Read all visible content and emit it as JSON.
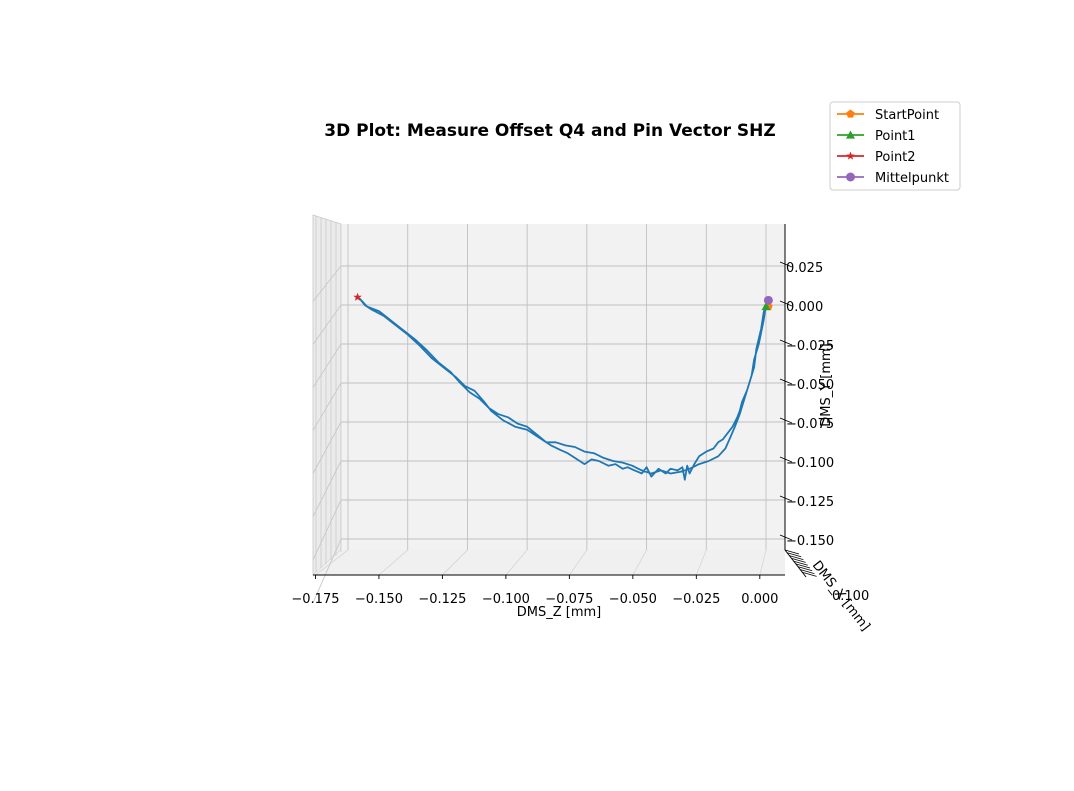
{
  "chart_data": {
    "type": "line",
    "projection": "3d",
    "title": "3D Plot: Measure Offset Q4 and Pin Vector SHZ",
    "xlabel": "DMS_Z [mm]",
    "ylabel": "DMS_Y [mm]",
    "zlabel": "DMS_X [mm]",
    "x_ticks": [
      -0.175,
      -0.15,
      -0.125,
      -0.1,
      -0.075,
      -0.05,
      -0.025,
      0.0
    ],
    "x_tick_labels": [
      "−0.175",
      "−0.150",
      "−0.125",
      "−0.100",
      "−0.075",
      "−0.050",
      "−0.025",
      "0.000"
    ],
    "y_ticks": [
      0.025,
      0.0,
      -0.025,
      -0.05,
      -0.075,
      -0.1,
      -0.125,
      -0.15
    ],
    "y_tick_labels": [
      "0.025",
      "0.000",
      "−0.025",
      "−0.050",
      "−0.075",
      "−0.100",
      "−0.125",
      "−0.150"
    ],
    "z_tick_labels": [
      "0.100"
    ],
    "xlim": [
      -0.185,
      0.008
    ],
    "ylim": [
      -0.165,
      0.05
    ],
    "grid": true,
    "legend_position": "top-right",
    "series": [
      {
        "name": "",
        "color": "#1f77b4",
        "style": "line",
        "points": [
          [
            0.0,
            0.0
          ],
          [
            -0.001,
            -0.01
          ],
          [
            -0.003,
            -0.025
          ],
          [
            -0.005,
            -0.035
          ],
          [
            -0.006,
            -0.045
          ],
          [
            -0.008,
            -0.055
          ],
          [
            -0.01,
            -0.062
          ],
          [
            -0.011,
            -0.068
          ],
          [
            -0.012,
            -0.072
          ],
          [
            -0.014,
            -0.078
          ],
          [
            -0.016,
            -0.082
          ],
          [
            -0.018,
            -0.086
          ],
          [
            -0.02,
            -0.088
          ],
          [
            -0.022,
            -0.092
          ],
          [
            -0.025,
            -0.094
          ],
          [
            -0.028,
            -0.097
          ],
          [
            -0.03,
            -0.102
          ],
          [
            -0.032,
            -0.108
          ],
          [
            -0.033,
            -0.103
          ],
          [
            -0.034,
            -0.112
          ],
          [
            -0.035,
            -0.104
          ],
          [
            -0.037,
            -0.106
          ],
          [
            -0.04,
            -0.105
          ],
          [
            -0.042,
            -0.108
          ],
          [
            -0.045,
            -0.105
          ],
          [
            -0.048,
            -0.11
          ],
          [
            -0.05,
            -0.104
          ],
          [
            -0.052,
            -0.108
          ],
          [
            -0.055,
            -0.106
          ],
          [
            -0.058,
            -0.104
          ],
          [
            -0.06,
            -0.105
          ],
          [
            -0.063,
            -0.102
          ],
          [
            -0.066,
            -0.103
          ],
          [
            -0.07,
            -0.1
          ],
          [
            -0.073,
            -0.099
          ],
          [
            -0.076,
            -0.102
          ],
          [
            -0.078,
            -0.1
          ],
          [
            -0.08,
            -0.098
          ],
          [
            -0.083,
            -0.095
          ],
          [
            -0.086,
            -0.093
          ],
          [
            -0.09,
            -0.09
          ],
          [
            -0.095,
            -0.085
          ],
          [
            -0.1,
            -0.08
          ],
          [
            -0.105,
            -0.078
          ],
          [
            -0.11,
            -0.074
          ],
          [
            -0.115,
            -0.068
          ],
          [
            -0.118,
            -0.062
          ],
          [
            -0.122,
            -0.055
          ],
          [
            -0.126,
            -0.052
          ],
          [
            -0.13,
            -0.046
          ],
          [
            -0.135,
            -0.04
          ],
          [
            -0.14,
            -0.034
          ],
          [
            -0.145,
            -0.026
          ],
          [
            -0.15,
            -0.019
          ],
          [
            -0.155,
            -0.013
          ],
          [
            -0.16,
            -0.007
          ],
          [
            -0.165,
            -0.003
          ],
          [
            -0.168,
            0.0
          ],
          [
            -0.17,
            0.004
          ],
          [
            -0.167,
            -0.001
          ],
          [
            -0.162,
            -0.004
          ],
          [
            -0.157,
            -0.01
          ],
          [
            -0.152,
            -0.016
          ],
          [
            -0.147,
            -0.022
          ],
          [
            -0.142,
            -0.029
          ],
          [
            -0.137,
            -0.037
          ],
          [
            -0.132,
            -0.043
          ],
          [
            -0.128,
            -0.05
          ],
          [
            -0.124,
            -0.056
          ],
          [
            -0.12,
            -0.06
          ],
          [
            -0.116,
            -0.066
          ],
          [
            -0.112,
            -0.07
          ],
          [
            -0.108,
            -0.072
          ],
          [
            -0.104,
            -0.076
          ],
          [
            -0.1,
            -0.078
          ],
          [
            -0.096,
            -0.083
          ],
          [
            -0.092,
            -0.088
          ],
          [
            -0.088,
            -0.088
          ],
          [
            -0.084,
            -0.09
          ],
          [
            -0.08,
            -0.091
          ],
          [
            -0.076,
            -0.094
          ],
          [
            -0.072,
            -0.095
          ],
          [
            -0.068,
            -0.098
          ],
          [
            -0.064,
            -0.1
          ],
          [
            -0.06,
            -0.101
          ],
          [
            -0.056,
            -0.103
          ],
          [
            -0.052,
            -0.106
          ],
          [
            -0.048,
            -0.108
          ],
          [
            -0.044,
            -0.106
          ],
          [
            -0.04,
            -0.108
          ],
          [
            -0.036,
            -0.107
          ],
          [
            -0.032,
            -0.105
          ],
          [
            -0.028,
            -0.102
          ],
          [
            -0.024,
            -0.1
          ],
          [
            -0.02,
            -0.097
          ],
          [
            -0.017,
            -0.092
          ],
          [
            -0.015,
            -0.085
          ],
          [
            -0.013,
            -0.078
          ],
          [
            -0.011,
            -0.07
          ],
          [
            -0.009,
            -0.06
          ],
          [
            -0.007,
            -0.05
          ],
          [
            -0.005,
            -0.04
          ],
          [
            -0.004,
            -0.028
          ],
          [
            -0.002,
            -0.015
          ],
          [
            -0.001,
            -0.005
          ],
          [
            0.0,
            0.0
          ]
        ]
      },
      {
        "name": "StartPoint",
        "color": "#ff7f0e",
        "marker": "pentagon",
        "points": [
          [
            0.001,
            -0.001
          ]
        ]
      },
      {
        "name": "Point1",
        "color": "#2ca02c",
        "marker": "triangle",
        "points": [
          [
            0.0,
            -0.001
          ]
        ]
      },
      {
        "name": "Point2",
        "color": "#d62728",
        "marker": "star",
        "points": [
          [
            -0.171,
            0.005
          ]
        ]
      },
      {
        "name": "Mittelpunkt",
        "color": "#9467bd",
        "marker": "circle",
        "points": [
          [
            0.001,
            0.003
          ]
        ]
      }
    ],
    "legend": [
      {
        "label": "StartPoint",
        "color": "#ff7f0e",
        "marker": "pentagon"
      },
      {
        "label": "Point1",
        "color": "#2ca02c",
        "marker": "triangle"
      },
      {
        "label": "Point2",
        "color": "#d62728",
        "marker": "star"
      },
      {
        "label": "Mittelpunkt",
        "color": "#9467bd",
        "marker": "circle"
      }
    ]
  }
}
